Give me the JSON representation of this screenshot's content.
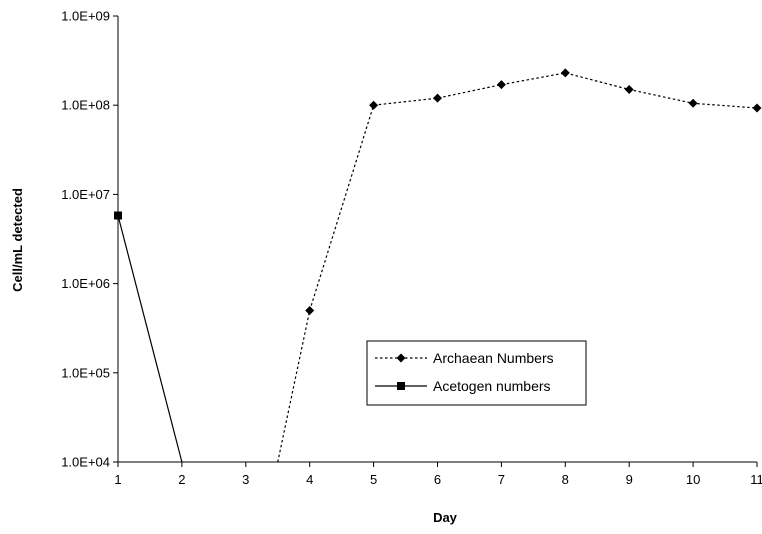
{
  "chart_data": {
    "type": "line",
    "xlabel": "Day",
    "ylabel": "Cell/mL detected",
    "x_scale": "linear",
    "y_scale": "log",
    "xlim": [
      1,
      11
    ],
    "ylim": [
      10000,
      1000000000
    ],
    "x_ticks": [
      "1",
      "2",
      "3",
      "4",
      "5",
      "6",
      "7",
      "8",
      "9",
      "10",
      "11"
    ],
    "y_ticks": [
      "1.0E+04",
      "1.0E+05",
      "1.0E+06",
      "1.0E+07",
      "1.0E+08",
      "1.0E+09"
    ],
    "grid": false,
    "legend_position": "center-right",
    "series": [
      {
        "name": "Archaean Numbers",
        "marker": "diamond",
        "line_style": "dotted",
        "color": "#000000",
        "points": [
          [
            3.5,
            10000
          ],
          [
            4,
            500000
          ],
          [
            5,
            100000000
          ],
          [
            6,
            120000000
          ],
          [
            7,
            170000000
          ],
          [
            8,
            230000000
          ],
          [
            9,
            150000000
          ],
          [
            10,
            105000000
          ],
          [
            11,
            93000000
          ]
        ],
        "marker_from_index": 1
      },
      {
        "name": "Acetogen numbers",
        "marker": "square",
        "line_style": "solid",
        "color": "#000000",
        "points": [
          [
            1,
            5800000
          ],
          [
            2,
            10000
          ]
        ],
        "marker_from_index": 0,
        "marker_count": 1
      }
    ]
  }
}
